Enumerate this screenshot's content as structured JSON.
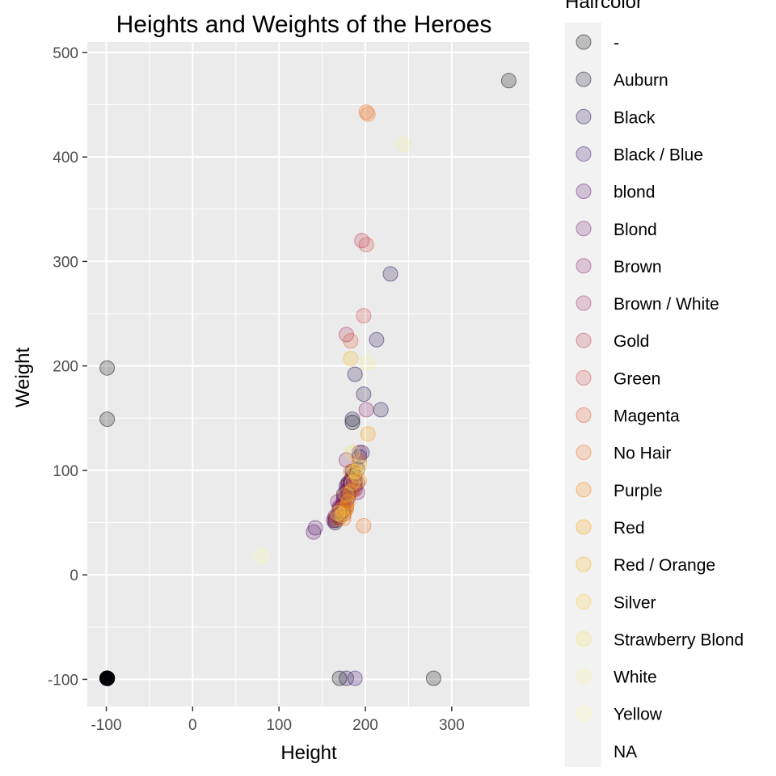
{
  "chart_data": {
    "type": "scatter",
    "title": "Heights and Weights of the Heroes",
    "xlabel": "Height",
    "ylabel": "Weight",
    "xlim": [
      -122,
      390
    ],
    "ylim": [
      -126,
      510
    ],
    "x_ticks": [
      -100,
      0,
      100,
      200,
      300
    ],
    "y_ticks": [
      -100,
      0,
      100,
      200,
      300,
      400,
      500
    ],
    "x_tick_labels": [
      "-100",
      "0",
      "100",
      "200",
      "300"
    ],
    "y_tick_labels": [
      "-100",
      "0",
      "100",
      "200",
      "300",
      "400",
      "500"
    ],
    "grid": true,
    "point_opacity": 0.22,
    "legend": {
      "title": "Haircolor",
      "placement": "right",
      "entries": [
        {
          "label": "-",
          "color": "#000004"
        },
        {
          "label": "Auburn",
          "color": "#0b0826"
        },
        {
          "label": "Black",
          "color": "#210c4a"
        },
        {
          "label": "Black / Blue",
          "color": "#3b0f70"
        },
        {
          "label": "blond",
          "color": "#57106e"
        },
        {
          "label": "Blond",
          "color": "#701f6c"
        },
        {
          "label": "Brown",
          "color": "#8a226a"
        },
        {
          "label": "Brown / White",
          "color": "#a32c61"
        },
        {
          "label": "Gold",
          "color": "#bc3754"
        },
        {
          "label": "Green",
          "color": "#d24644"
        },
        {
          "label": "Magenta",
          "color": "#e35932"
        },
        {
          "label": "No Hair",
          "color": "#f06f1f"
        },
        {
          "label": "Purple",
          "color": "#f8850f"
        },
        {
          "label": "Red",
          "color": "#fb9b06"
        },
        {
          "label": "Red / Orange",
          "color": "#f9b51a"
        },
        {
          "label": "Silver",
          "color": "#f6cd3d"
        },
        {
          "label": "Strawberry Blond",
          "color": "#f1e262"
        },
        {
          "label": "White",
          "color": "#f3f098"
        },
        {
          "label": "Yellow",
          "color": "#fcffa4"
        },
        {
          "label": "NA",
          "color": ""
        }
      ]
    },
    "series": [
      {
        "name": "-",
        "color": "#000004",
        "points": [
          [
            -99,
            -99
          ],
          [
            -99,
            -99
          ],
          [
            -99,
            -99
          ],
          [
            -99,
            -99
          ],
          [
            -99,
            -99
          ],
          [
            -99,
            -99
          ],
          [
            -99,
            -99
          ],
          [
            -99,
            -99
          ],
          [
            -99,
            -99
          ],
          [
            -99,
            -99
          ],
          [
            -99,
            -99
          ],
          [
            -99,
            -99
          ],
          [
            -99,
            -99
          ],
          [
            -99,
            -99
          ],
          [
            -99,
            -99
          ],
          [
            -99,
            -99
          ],
          [
            -99,
            -99
          ],
          [
            -99,
            198
          ],
          [
            -99,
            149
          ],
          [
            366,
            473
          ],
          [
            279,
            -99
          ],
          [
            170,
            -99
          ],
          [
            185,
            146
          ],
          [
            165,
            52
          ],
          [
            183,
            88
          ]
        ]
      },
      {
        "name": "Auburn",
        "color": "#0b0826",
        "points": [
          [
            188,
            86
          ],
          [
            175,
            77
          ]
        ]
      },
      {
        "name": "Black",
        "color": "#210c4a",
        "points": [
          [
            180,
            88
          ],
          [
            183,
            81
          ],
          [
            165,
            50
          ],
          [
            188,
            90
          ],
          [
            178,
            77
          ],
          [
            170,
            63
          ],
          [
            173,
            65
          ],
          [
            185,
            92
          ],
          [
            191,
            101
          ],
          [
            175,
            61
          ],
          [
            175,
            72
          ],
          [
            168,
            57
          ],
          [
            180,
            81
          ],
          [
            186,
            95
          ],
          [
            183,
            90
          ],
          [
            185,
            99
          ],
          [
            188,
            192
          ],
          [
            213,
            225
          ],
          [
            229,
            288
          ],
          [
            198,
            173
          ],
          [
            218,
            158
          ],
          [
            185,
            149
          ],
          [
            196,
            117
          ],
          [
            178,
            -99
          ],
          [
            193,
            113
          ],
          [
            168,
            55
          ],
          [
            178,
            85
          ],
          [
            183,
            86
          ]
        ]
      },
      {
        "name": "Black / Blue",
        "color": "#3b0f70",
        "points": [
          [
            188,
            -99
          ]
        ]
      },
      {
        "name": "blond",
        "color": "#57106e",
        "points": [
          [
            142,
            45
          ],
          [
            140,
            41
          ]
        ]
      },
      {
        "name": "Blond",
        "color": "#701f6c",
        "points": [
          [
            183,
            90
          ],
          [
            170,
            65
          ],
          [
            178,
            81
          ],
          [
            168,
            57
          ],
          [
            175,
            58
          ],
          [
            180,
            74
          ],
          [
            188,
            95
          ],
          [
            191,
            88
          ],
          [
            178,
            65
          ],
          [
            165,
            54
          ],
          [
            185,
            90
          ],
          [
            183,
            79
          ],
          [
            173,
            61
          ],
          [
            188,
            82
          ],
          [
            170,
            55
          ]
        ]
      },
      {
        "name": "Brown",
        "color": "#8a226a",
        "points": [
          [
            178,
            77
          ],
          [
            175,
            74
          ],
          [
            180,
            79
          ],
          [
            170,
            63
          ],
          [
            183,
            88
          ],
          [
            168,
            59
          ],
          [
            173,
            67
          ],
          [
            185,
            81
          ],
          [
            188,
            99
          ],
          [
            180,
            83
          ],
          [
            165,
            56
          ],
          [
            178,
            70
          ],
          [
            191,
            79
          ],
          [
            201,
            158
          ],
          [
            178,
            110
          ],
          [
            193,
            117
          ],
          [
            163,
            52
          ],
          [
            175,
            68
          ],
          [
            168,
            70
          ],
          [
            180,
            86
          ],
          [
            188,
            90
          ],
          [
            173,
            61
          ]
        ]
      },
      {
        "name": "Brown / White",
        "color": "#a32c61",
        "points": [
          [
            178,
            230
          ]
        ]
      },
      {
        "name": "Gold",
        "color": "#bc3754",
        "points": [
          [
            196,
            320
          ]
        ]
      },
      {
        "name": "Green",
        "color": "#d24644",
        "points": [
          [
            198,
            248
          ],
          [
            201,
            316
          ]
        ]
      },
      {
        "name": "Magenta",
        "color": "#e35932",
        "points": [
          [
            183,
            224
          ]
        ]
      },
      {
        "name": "No Hair",
        "color": "#f06f1f",
        "points": [
          [
            201,
            443
          ],
          [
            203,
            441
          ],
          [
            183,
            99
          ],
          [
            188,
            90
          ],
          [
            178,
            63
          ],
          [
            193,
            108
          ],
          [
            175,
            54
          ],
          [
            198,
            47
          ],
          [
            185,
            81
          ]
        ]
      },
      {
        "name": "Purple",
        "color": "#f8850f",
        "points": [
          [
            193,
            90
          ]
        ]
      },
      {
        "name": "Red",
        "color": "#fb9b06",
        "points": [
          [
            175,
            59
          ],
          [
            180,
            70
          ],
          [
            183,
            79
          ],
          [
            188,
            99
          ],
          [
            168,
            54
          ],
          [
            203,
            135
          ],
          [
            173,
            63
          ],
          [
            178,
            65
          ]
        ]
      },
      {
        "name": "Red / Orange",
        "color": "#f9b51a",
        "points": [
          [
            183,
            207
          ]
        ]
      },
      {
        "name": "Silver",
        "color": "#f6cd3d",
        "points": [
          [
            178,
            77
          ]
        ]
      },
      {
        "name": "Strawberry Blond",
        "color": "#f1e262",
        "points": [
          [
            168,
            59
          ],
          [
            185,
            117
          ],
          [
            188,
            99
          ],
          [
            193,
            104
          ],
          [
            191,
            95
          ],
          [
            185,
            88
          ],
          [
            173,
            57
          ]
        ]
      },
      {
        "name": "White",
        "color": "#f3f098",
        "points": [
          [
            244,
            412
          ],
          [
            203,
            203
          ]
        ]
      },
      {
        "name": "Yellow",
        "color": "#fcffa4",
        "points": [
          [
            79,
            18
          ]
        ]
      }
    ]
  }
}
